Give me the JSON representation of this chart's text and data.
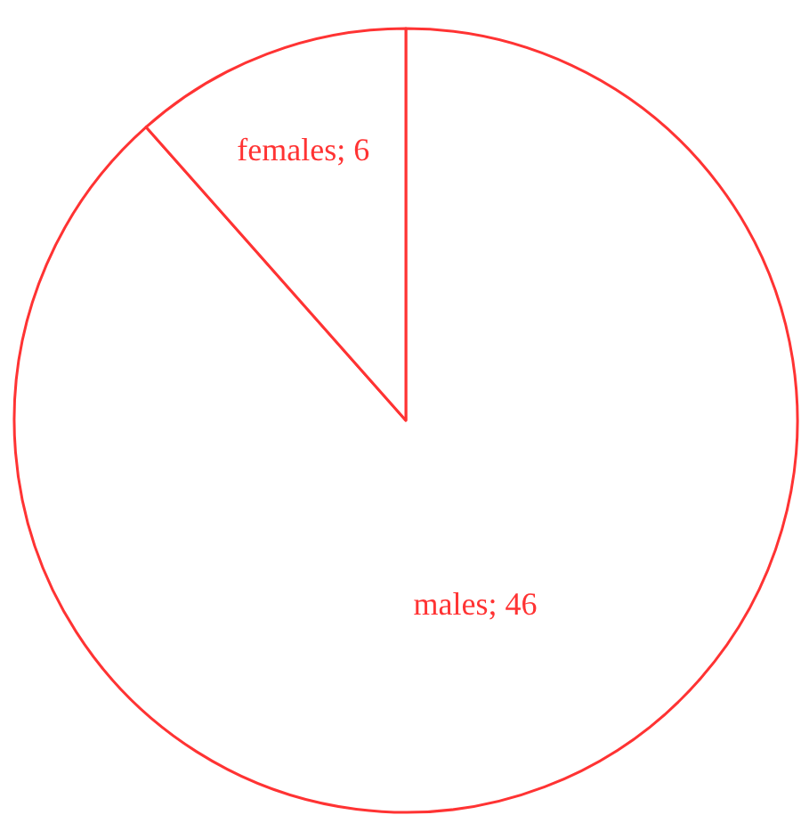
{
  "chart_data": {
    "type": "pie",
    "categories": [
      "males",
      "females"
    ],
    "values": [
      46,
      6
    ],
    "value_labels": [
      "; 46",
      "; 6"
    ],
    "colors": [
      "#ffffff",
      "#ffffff"
    ]
  }
}
